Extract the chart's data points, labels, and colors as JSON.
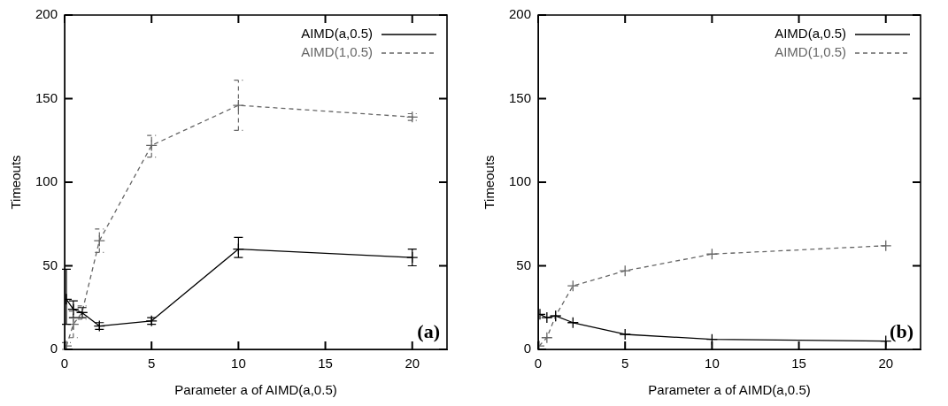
{
  "chart_data": [
    {
      "type": "line",
      "xlabel": "Parameter a of AIMD(a,0.5)",
      "ylabel": "Timeouts",
      "xlim": [
        0,
        22
      ],
      "xticks": [
        0,
        5,
        10,
        15,
        20
      ],
      "ylim": [
        0,
        200
      ],
      "yticks": [
        0,
        50,
        100,
        150,
        200
      ],
      "grid": false,
      "legend": "top right",
      "annotations": [
        "(a)"
      ],
      "series": [
        {
          "name": "AIMD(a,0.5)",
          "color": "#000000",
          "line_style": "solid",
          "marker": "cross",
          "x": [
            0.1,
            0.5,
            1,
            2,
            5,
            10,
            20
          ],
          "values": [
            30,
            24,
            22,
            14,
            17,
            60,
            55
          ],
          "errors": [
            [
              15,
              48
            ],
            5,
            3,
            2,
            2,
            [
              55,
              67
            ],
            [
              50,
              60
            ]
          ]
        },
        {
          "name": "AIMD(1,0.5)",
          "color": "#666666",
          "line_style": "dashed",
          "marker": "cross",
          "x": [
            0.1,
            0.5,
            1,
            2,
            5,
            10,
            20
          ],
          "values": [
            2,
            15,
            22,
            65,
            122,
            146,
            139
          ],
          "errors": [
            2,
            8,
            4,
            [
              58,
              72
            ],
            [
              115,
              128
            ],
            [
              131,
              161
            ],
            2
          ]
        }
      ]
    },
    {
      "type": "line",
      "xlabel": "Parameter a of AIMD(a,0.5)",
      "ylabel": "Timeouts",
      "xlim": [
        0,
        22
      ],
      "xticks": [
        0,
        5,
        10,
        15,
        20
      ],
      "ylim": [
        0,
        200
      ],
      "yticks": [
        0,
        50,
        100,
        150,
        200
      ],
      "grid": false,
      "legend": "top right",
      "annotations": [
        "(b)"
      ],
      "series": [
        {
          "name": "AIMD(a,0.5)",
          "color": "#000000",
          "line_style": "solid",
          "marker": "cross",
          "x": [
            0.1,
            0.5,
            1,
            2,
            5,
            10,
            20
          ],
          "values": [
            21,
            19,
            20,
            16,
            9,
            6,
            5
          ]
        },
        {
          "name": "AIMD(1,0.5)",
          "color": "#666666",
          "line_style": "dashed",
          "marker": "cross",
          "x": [
            0.05,
            0.5,
            1,
            2,
            5,
            10,
            20
          ],
          "values": [
            2,
            7,
            20,
            38,
            47,
            57,
            62
          ]
        }
      ]
    }
  ]
}
